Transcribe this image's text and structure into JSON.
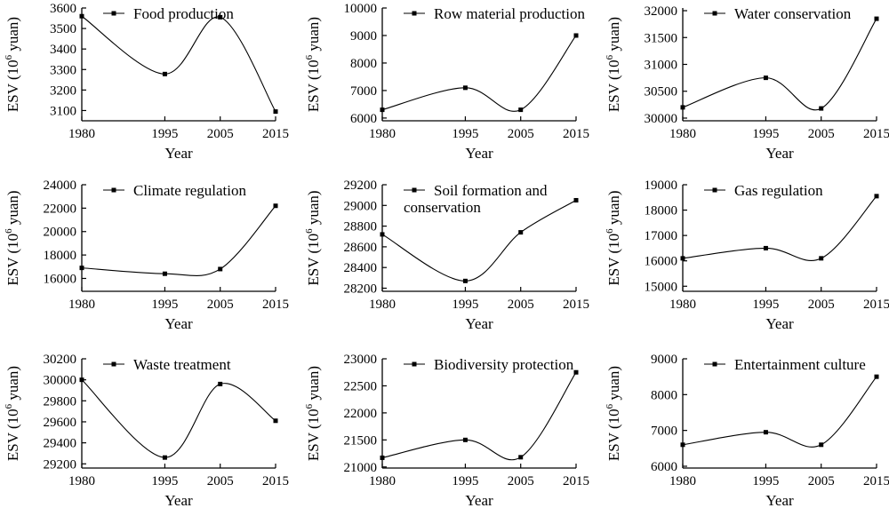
{
  "chart_data": [
    {
      "type": "line",
      "title": "Food production",
      "xlabel": "Year",
      "ylabel": "ESV (10⁶ yuan)",
      "x": [
        1980,
        1995,
        2005,
        2015
      ],
      "y": [
        3560,
        3278,
        3555,
        3095
      ],
      "ylim": [
        3050,
        3600
      ],
      "yticks": [
        3100,
        3200,
        3300,
        3400,
        3500,
        3600
      ],
      "grid": false,
      "legend": "top-center"
    },
    {
      "type": "line",
      "title": "Row material production",
      "xlabel": "Year",
      "ylabel": "ESV (10⁶ yuan)",
      "x": [
        1980,
        1995,
        2005,
        2015
      ],
      "y": [
        6300,
        7100,
        6300,
        9000
      ],
      "ylim": [
        5900,
        10000
      ],
      "yticks": [
        6000,
        7000,
        8000,
        9000,
        10000
      ],
      "grid": false,
      "legend": "top-center"
    },
    {
      "type": "line",
      "title": "Water conservation",
      "xlabel": "Year",
      "ylabel": "ESV (10⁶ yuan)",
      "x": [
        1980,
        1995,
        2005,
        2015
      ],
      "y": [
        30200,
        30750,
        30180,
        31850
      ],
      "ylim": [
        29950,
        32050
      ],
      "yticks": [
        30000,
        30500,
        31000,
        31500,
        32000
      ],
      "grid": false,
      "legend": "top-center"
    },
    {
      "type": "line",
      "title": "Climate regulation",
      "xlabel": "Year",
      "ylabel": "ESV (10⁶ yuan)",
      "x": [
        1980,
        1995,
        2005,
        2015
      ],
      "y": [
        16900,
        16400,
        16800,
        22200
      ],
      "ylim": [
        14900,
        24000
      ],
      "yticks": [
        16000,
        18000,
        20000,
        22000,
        24000
      ],
      "grid": false,
      "legend": "top-center"
    },
    {
      "type": "line",
      "title": "Soil formation and conservation",
      "xlabel": "Year",
      "ylabel": "ESV (10⁶ yuan)",
      "x": [
        1980,
        1995,
        2005,
        2015
      ],
      "y": [
        28720,
        28270,
        28740,
        29050
      ],
      "ylim": [
        28170,
        29200
      ],
      "yticks": [
        28200,
        28400,
        28600,
        28800,
        29000,
        29200
      ],
      "grid": false,
      "legend": "top-center"
    },
    {
      "type": "line",
      "title": "Gas regulation",
      "xlabel": "Year",
      "ylabel": "ESV (10⁶ yuan)",
      "x": [
        1980,
        1995,
        2005,
        2015
      ],
      "y": [
        16100,
        16500,
        16100,
        18550
      ],
      "ylim": [
        14800,
        19000
      ],
      "yticks": [
        15000,
        16000,
        17000,
        18000,
        19000
      ],
      "grid": false,
      "legend": "top-center"
    },
    {
      "type": "line",
      "title": "Waste treatment",
      "xlabel": "Year",
      "ylabel": "ESV (10⁶ yuan)",
      "x": [
        1980,
        1995,
        2005,
        2015
      ],
      "y": [
        30000,
        29260,
        29960,
        29610
      ],
      "ylim": [
        29160,
        30200
      ],
      "yticks": [
        29200,
        29400,
        29600,
        29800,
        30000,
        30200
      ],
      "grid": false,
      "legend": "top-center"
    },
    {
      "type": "line",
      "title": "Biodiversity protection",
      "xlabel": "Year",
      "ylabel": "ESV (10⁶ yuan)",
      "x": [
        1980,
        1995,
        2005,
        2015
      ],
      "y": [
        21170,
        21500,
        21180,
        22750
      ],
      "ylim": [
        20980,
        23000
      ],
      "yticks": [
        21000,
        21500,
        22000,
        22500,
        23000
      ],
      "grid": false,
      "legend": "top-center"
    },
    {
      "type": "line",
      "title": "Entertainment culture",
      "xlabel": "Year",
      "ylabel": "ESV (10⁶ yuan)",
      "x": [
        1980,
        1995,
        2005,
        2015
      ],
      "y": [
        6600,
        6950,
        6600,
        8500
      ],
      "ylim": [
        5950,
        9000
      ],
      "yticks": [
        6000,
        7000,
        8000,
        9000
      ],
      "grid": false,
      "legend": "top-center"
    }
  ]
}
